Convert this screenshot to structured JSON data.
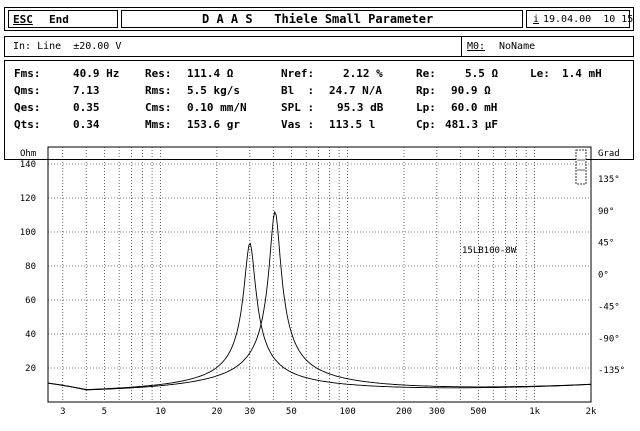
{
  "header": {
    "esc_key": "ESC",
    "esc_label": "End",
    "title": "D A A S   Thiele Small Parameter",
    "info_key": "i",
    "datetime": "19.04.00  10 15"
  },
  "input_bar": {
    "input": "In: Line  ±20.00 V",
    "memory_key": "M0:",
    "memory_name": "NoName"
  },
  "params": {
    "fms": {
      "label": "Fms:",
      "value": "40.9 Hz"
    },
    "qms": {
      "label": "Qms:",
      "value": "7.13"
    },
    "qes": {
      "label": "Qes:",
      "value": "0.35"
    },
    "qts": {
      "label": "Qts:",
      "value": "0.34"
    },
    "res": {
      "label": "Res:",
      "value": "111.4 Ω"
    },
    "rms": {
      "label": "Rms:",
      "value": "5.5 kg/s"
    },
    "cms": {
      "label": "Cms:",
      "value": "0.10 mm/N"
    },
    "mms": {
      "label": "Mms:",
      "value": "153.6 gr"
    },
    "nref": {
      "label": "Nref:",
      "value": "2.12 %"
    },
    "bl": {
      "label": "Bl  :",
      "value": "24.7 N/A"
    },
    "spl": {
      "label": "SPL :",
      "value": "95.3 dB"
    },
    "vas": {
      "label": "Vas :",
      "value": "113.5 l"
    },
    "re": {
      "label": "Re:",
      "value": "5.5 Ω"
    },
    "rp": {
      "label": "Rp:",
      "value": "90.9 Ω"
    },
    "lp": {
      "label": "Lp:",
      "value": "60.0 mH"
    },
    "cp": {
      "label": "Cp:",
      "value": "481.3 µF"
    },
    "le": {
      "label": "Le:",
      "value": "1.4 mH"
    }
  },
  "chart_data": {
    "type": "line",
    "x_scale": "log",
    "xlim": [
      2.5,
      2000
    ],
    "ylim": [
      0,
      150
    ],
    "y2lim": [
      -180,
      180
    ],
    "ylabel": "Ohm",
    "y2label": "Grad",
    "x_ticks": [
      "3",
      "5",
      "10",
      "20",
      "30",
      "50",
      "100",
      "200",
      "300",
      "500",
      "1k",
      "2k"
    ],
    "x_tick_values": [
      3,
      5,
      10,
      20,
      30,
      50,
      100,
      200,
      300,
      500,
      1000,
      2000
    ],
    "y_ticks": [
      "20",
      "40",
      "60",
      "80",
      "100",
      "120",
      "140"
    ],
    "y_tick_values": [
      20,
      40,
      60,
      80,
      100,
      120,
      140
    ],
    "y2_ticks": [
      "135°",
      "90°",
      "45°",
      "0°",
      "-45°",
      "-90°",
      "-135°"
    ],
    "y2_tick_values": [
      135,
      90,
      45,
      0,
      -45,
      -90,
      -135
    ],
    "grid": true,
    "annotation": "15LB100-8W",
    "series": [
      {
        "fs": 30,
        "peak": 93
      },
      {
        "fs": 40.9,
        "peak": 111.4
      }
    ]
  }
}
